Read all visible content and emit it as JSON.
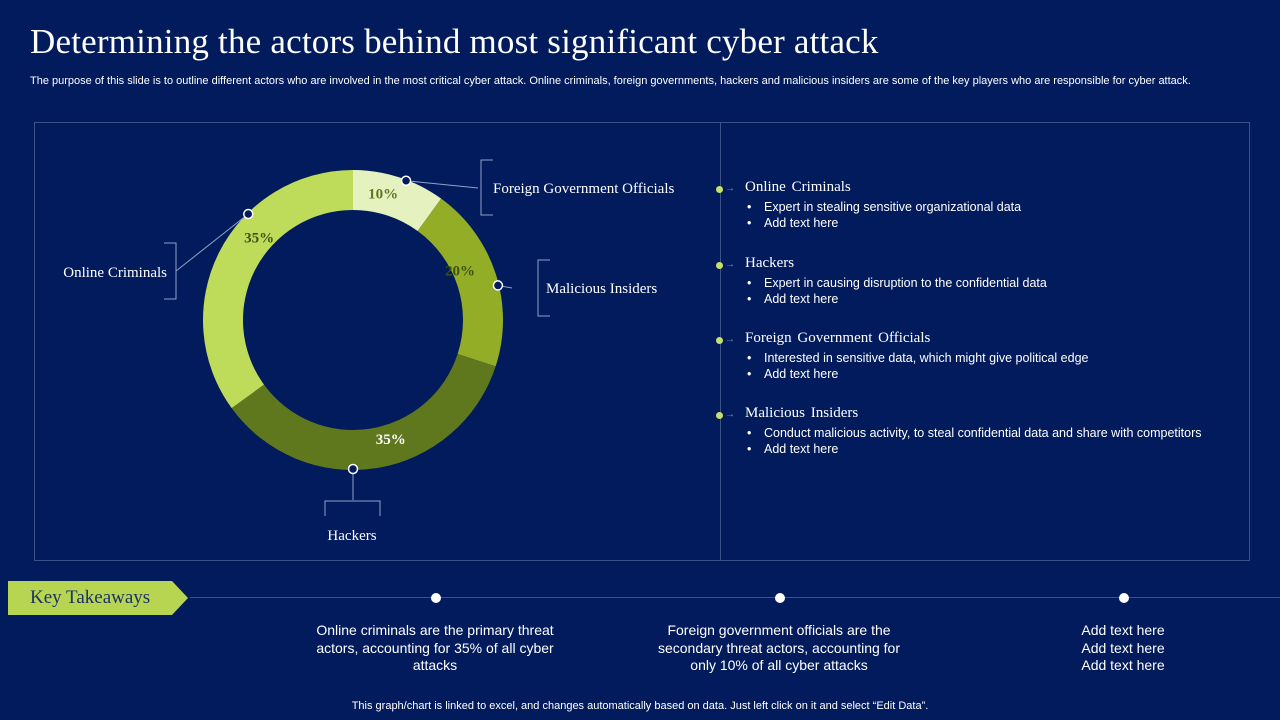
{
  "title": "Determining the actors behind most significant cyber attack",
  "subtitle": "The purpose of this slide is to outline different actors who are involved in the most critical cyber attack.  Online criminals, foreign governments, hackers and malicious insiders are some of the key players who are responsible for cyber attack.",
  "chart_data": {
    "type": "pie",
    "style": "donut",
    "categories": [
      "Foreign Government Officials",
      "Malicious Insiders",
      "Hackers",
      "Online Criminals"
    ],
    "values": [
      10,
      20,
      35,
      35
    ],
    "labels": [
      "10%",
      "20%",
      "35%",
      "35%"
    ],
    "colors": [
      "#e6f1c0",
      "#93ae26",
      "#5f771d",
      "#bfdb5a"
    ]
  },
  "legend": [
    {
      "name": "Online  Criminals",
      "bullets": [
        "Expert in stealing sensitive organizational data",
        "Add text here"
      ]
    },
    {
      "name": "Hackers",
      "bullets": [
        "Expert in causing disruption to the confidential data",
        "Add text here"
      ]
    },
    {
      "name": "Foreign  Government  Officials",
      "bullets": [
        "Interested in sensitive data, which might give political edge",
        "Add text here"
      ]
    },
    {
      "name": "Malicious  Insiders",
      "bullets": [
        "Conduct malicious activity, to steal confidential data and share with competitors",
        "Add text here"
      ]
    }
  ],
  "takeaways": {
    "label": "Key Takeaways",
    "items": [
      "Online criminals are the primary threat actors, accounting for 35% of all cyber attacks",
      "Foreign government officials are the secondary threat actors, accounting for only 10% of all cyber attacks",
      "Add text here\nAdd text here\nAdd text here"
    ]
  },
  "footer": "This graph/chart is linked to excel,  and changes automatically based on data. Just left click on it and select “Edit Data”.",
  "colors": {
    "background": "#021b5c",
    "accent": "#c6e06a",
    "tag": "#b7d550"
  }
}
